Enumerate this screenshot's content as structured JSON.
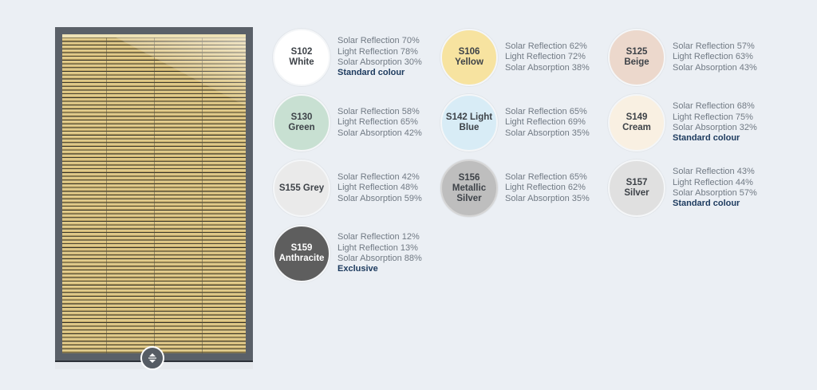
{
  "preview": {
    "handle_icon": "chevron-up-down-icon",
    "frame_color": "#5a6068",
    "slat_color": "#d8c27c"
  },
  "labels": {
    "solar_reflection": "Solar Reflection",
    "light_reflection": "Light Reflection",
    "solar_absorption": "Solar Absorption"
  },
  "colours": [
    {
      "name": "S102 White",
      "hex": "#ffffff",
      "text": "dark",
      "solar_reflection": "70%",
      "light_reflection": "78%",
      "solar_absorption": "30%",
      "badge": "Standard colour"
    },
    {
      "name": "S106 Yellow",
      "hex": "#f7e3a0",
      "text": "dark",
      "solar_reflection": "62%",
      "light_reflection": "72%",
      "solar_absorption": "38%",
      "badge": ""
    },
    {
      "name": "S125 Beige",
      "hex": "#ecd8cc",
      "text": "dark",
      "solar_reflection": "57%",
      "light_reflection": "63%",
      "solar_absorption": "43%",
      "badge": ""
    },
    {
      "name": "S130 Green",
      "hex": "#c8e0d2",
      "text": "dark",
      "solar_reflection": "58%",
      "light_reflection": "65%",
      "solar_absorption": "42%",
      "badge": ""
    },
    {
      "name": "S142 Light Blue",
      "hex": "#d8ecf6",
      "text": "dark",
      "solar_reflection": "65%",
      "light_reflection": "69%",
      "solar_absorption": "35%",
      "badge": ""
    },
    {
      "name": "S149 Cream",
      "hex": "#f9f0e2",
      "text": "dark",
      "solar_reflection": "68%",
      "light_reflection": "75%",
      "solar_absorption": "32%",
      "badge": "Standard colour"
    },
    {
      "name": "S155 Grey",
      "hex": "#eaeaea",
      "text": "dark",
      "solar_reflection": "42%",
      "light_reflection": "48%",
      "solar_absorption": "59%",
      "badge": ""
    },
    {
      "name": "S156 Metallic Silver",
      "hex": "#bebebe",
      "text": "dark",
      "solar_reflection": "65%",
      "light_reflection": "62%",
      "solar_absorption": "35%",
      "badge": ""
    },
    {
      "name": "S157 Silver",
      "hex": "#e0e0e0",
      "text": "dark",
      "solar_reflection": "43%",
      "light_reflection": "44%",
      "solar_absorption": "57%",
      "badge": "Standard colour"
    },
    {
      "name": "S159 Anthracite",
      "hex": "#5e5e5e",
      "text": "light",
      "solar_reflection": "12%",
      "light_reflection": "13%",
      "solar_absorption": "88%",
      "badge": "Exclusive"
    }
  ]
}
